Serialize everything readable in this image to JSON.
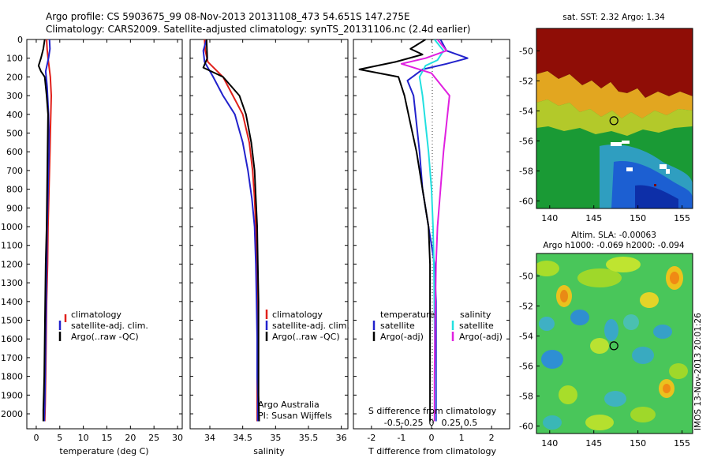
{
  "header": {
    "line1": "Argo profile: CS 5903675_99 08-Nov-2013 20131108_473 54.651S 147.275E",
    "line2": "Climatology: CARS2009. Satellite-adjusted climatology: synTS_20131106.nc (2.4d earlier)"
  },
  "colors": {
    "red": "#e0201b",
    "blue": "#2222cc",
    "black": "#000000",
    "cyan": "#22e0e0",
    "magenta": "#e020e0"
  },
  "chart_data": [
    {
      "id": "temperature",
      "type": "line",
      "xlabel": "temperature (deg C)",
      "ylabel": "",
      "xlim": [
        -2,
        31
      ],
      "ylim": [
        2080,
        0
      ],
      "y_reversed": true,
      "xticks": [
        "0",
        "5",
        "10",
        "15",
        "20",
        "25",
        "30"
      ],
      "xtick_values": [
        0,
        5,
        10,
        15,
        20,
        25,
        30
      ],
      "yticks": [
        "0",
        "100",
        "200",
        "300",
        "400",
        "500",
        "600",
        "700",
        "800",
        "900",
        "1000",
        "1100",
        "1200",
        "1300",
        "1400",
        "1500",
        "1600",
        "1700",
        "1800",
        "1900",
        "2000"
      ],
      "ytick_values": [
        0,
        100,
        200,
        300,
        400,
        500,
        600,
        700,
        800,
        900,
        1000,
        1100,
        1200,
        1300,
        1400,
        1500,
        1600,
        1700,
        1800,
        1900,
        2000
      ],
      "legend": [
        "climatology",
        "satellite-adj. clim.",
        "Argo(..raw -QC)"
      ],
      "series": [
        {
          "name": "climatology",
          "color": "red",
          "x": [
            2.2,
            2.3,
            2.5,
            3,
            3.2,
            3.1,
            3,
            2.9,
            2.8,
            2.7,
            2.6,
            2.5,
            2.4,
            2.2,
            2.1,
            2,
            1.9,
            1.8
          ],
          "y": [
            0,
            50,
            100,
            200,
            300,
            400,
            500,
            600,
            700,
            800,
            900,
            1000,
            1200,
            1400,
            1600,
            1800,
            1950,
            2040
          ]
        },
        {
          "name": "satellite-adj. clim.",
          "color": "blue",
          "x": [
            2.8,
            2.9,
            2.6,
            2,
            2.3,
            2.6,
            2.7,
            2.7,
            2.6,
            2.5,
            2.4,
            2.3,
            2.2,
            2.1,
            2,
            1.9,
            1.8,
            1.7
          ],
          "y": [
            0,
            50,
            100,
            170,
            250,
            400,
            500,
            600,
            700,
            800,
            900,
            1000,
            1200,
            1400,
            1600,
            1800,
            1950,
            2040
          ]
        },
        {
          "name": "Argo(..raw -QC)",
          "color": "black",
          "x": [
            1.8,
            1.5,
            1,
            0.5,
            1,
            1.8,
            2.2,
            2.5,
            2.4,
            2.3,
            2.2,
            2,
            1.9,
            1.8,
            1.7,
            1.6,
            1.5,
            1.5
          ],
          "y": [
            0,
            50,
            100,
            140,
            170,
            200,
            300,
            400,
            600,
            800,
            1000,
            1200,
            1400,
            1600,
            1800,
            1900,
            1980,
            2040
          ]
        }
      ]
    },
    {
      "id": "salinity",
      "type": "line",
      "xlabel": "salinity",
      "ylabel": "",
      "xlim": [
        33.7,
        36.1
      ],
      "ylim": [
        2080,
        0
      ],
      "y_reversed": true,
      "xticks": [
        "34",
        "34.5",
        "35",
        "35.5",
        "36"
      ],
      "xtick_values": [
        34,
        34.5,
        35,
        35.5,
        36
      ],
      "legend": [
        "climatology",
        "satellite-adj. clim.",
        "Argo(..raw -QC)"
      ],
      "annotation": [
        "Argo Australia",
        "PI: Susan Wijffels"
      ],
      "series": [
        {
          "name": "climatology",
          "color": "red",
          "x": [
            33.92,
            33.93,
            33.97,
            34.2,
            34.35,
            34.5,
            34.6,
            34.65,
            34.68,
            34.7,
            34.71,
            34.72,
            34.72,
            34.72,
            34.72,
            34.72,
            34.72
          ],
          "y": [
            0,
            60,
            120,
            200,
            300,
            400,
            550,
            700,
            850,
            1000,
            1200,
            1400,
            1600,
            1800,
            1900,
            2000,
            2040
          ]
        },
        {
          "name": "satellite-adj. clim.",
          "color": "blue",
          "x": [
            33.95,
            33.9,
            33.92,
            34.05,
            34.2,
            34.38,
            34.5,
            34.58,
            34.64,
            34.68,
            34.7,
            34.71,
            34.72,
            34.72,
            34.73,
            34.73,
            34.73
          ],
          "y": [
            0,
            60,
            120,
            200,
            300,
            400,
            550,
            700,
            850,
            1000,
            1200,
            1400,
            1600,
            1800,
            1900,
            2000,
            2040
          ]
        },
        {
          "name": "Argo(..raw -QC)",
          "color": "black",
          "x": [
            33.95,
            33.96,
            33.9,
            34.2,
            34.45,
            34.55,
            34.63,
            34.68,
            34.7,
            34.72,
            34.73,
            34.74,
            34.74,
            34.74,
            34.75
          ],
          "y": [
            0,
            100,
            150,
            200,
            300,
            400,
            550,
            700,
            850,
            1000,
            1200,
            1400,
            1600,
            1900,
            2040
          ]
        }
      ]
    },
    {
      "id": "difference",
      "type": "line",
      "xlabel": "T difference from climatology",
      "top_axis_label": "S difference from climatology",
      "xlim": [
        -2.6,
        2.6
      ],
      "ylim": [
        2080,
        0
      ],
      "y_reversed": true,
      "xticks": [
        "-2",
        "-1",
        "0",
        "1",
        "2"
      ],
      "xtick_values": [
        -2,
        -1,
        0,
        1,
        2
      ],
      "sticks": [
        "-0.5",
        "-0.25",
        "0",
        "0.25",
        "0.5"
      ],
      "stick_values": [
        -0.5,
        -0.25,
        0,
        0.25,
        0.5
      ],
      "s_scale": 2.6,
      "legend": {
        "temperature_heading": "temperature",
        "salinity_heading": "salinity",
        "items": [
          "satellite",
          "Argo(-adj)",
          "satellite",
          "Argo(-adj)"
        ]
      },
      "series": [
        {
          "name": "temperature satellite",
          "color": "blue",
          "x": [
            0.3,
            0.5,
            1.2,
            0.5,
            -0.3,
            -0.8,
            -0.6,
            -0.5,
            -0.4,
            -0.3,
            -0.1,
            0.1,
            0.15,
            0.15,
            0.15,
            0.15
          ],
          "y": [
            0,
            60,
            100,
            130,
            160,
            220,
            300,
            450,
            600,
            800,
            1000,
            1200,
            1400,
            1700,
            1900,
            2040
          ]
        },
        {
          "name": "temperature Argo(-adj)",
          "color": "black",
          "x": [
            -0.2,
            -0.7,
            -0.3,
            -1.2,
            -2.4,
            -1.1,
            -0.9,
            -0.7,
            -0.5,
            -0.3,
            -0.1,
            -0.05,
            -0.05,
            -0.05,
            -0.05
          ],
          "y": [
            0,
            50,
            80,
            120,
            160,
            200,
            300,
            450,
            600,
            800,
            1000,
            1200,
            1500,
            1800,
            2040
          ]
        },
        {
          "name": "salinity satellite",
          "color": "cyan",
          "x": [
            0.1,
            0.4,
            0.2,
            -0.2,
            -0.4,
            -0.3,
            -0.2,
            -0.1,
            0,
            0.05,
            0.08,
            0.1,
            0.12,
            0.12
          ],
          "y": [
            0,
            60,
            110,
            140,
            200,
            300,
            450,
            600,
            800,
            1000,
            1200,
            1500,
            1800,
            2040
          ]
        },
        {
          "name": "salinity Argo(-adj)",
          "color": "magenta",
          "x": [
            0.2,
            0.5,
            -0.2,
            -1,
            0,
            0.6,
            0.5,
            0.4,
            0.3,
            0.2,
            0.15,
            0.12,
            0.1,
            0.1
          ],
          "y": [
            0,
            60,
            100,
            130,
            180,
            300,
            450,
            600,
            800,
            1000,
            1200,
            1500,
            1800,
            2040
          ]
        }
      ]
    },
    {
      "id": "sst_map",
      "type": "heatmap",
      "title": "sat. SST: 2.32 Argo: 1.34",
      "xlim": [
        138.5,
        156.2
      ],
      "ylim": [
        -60.5,
        -48.5
      ],
      "xticks": [
        "140",
        "145",
        "150",
        "155"
      ],
      "xtick_values": [
        140,
        145,
        150,
        155
      ],
      "yticks": [
        "-50",
        "-52",
        "-54",
        "-56",
        "-58",
        "-60"
      ],
      "ytick_values": [
        -50,
        -52,
        -54,
        -56,
        -58,
        -60
      ],
      "marker": {
        "lon": 147.275,
        "lat": -54.651
      }
    },
    {
      "id": "sla_map",
      "type": "heatmap",
      "title": "Altim. SLA: -0.00063",
      "subtitle": "Argo h1000: -0.069 h2000: -0.094",
      "xlim": [
        138.5,
        156.2
      ],
      "ylim": [
        -60.5,
        -48.5
      ],
      "xticks": [
        "140",
        "145",
        "150",
        "155"
      ],
      "xtick_values": [
        140,
        145,
        150,
        155
      ],
      "yticks": [
        "-50",
        "-52",
        "-54",
        "-56",
        "-58",
        "-60"
      ],
      "ytick_values": [
        -50,
        -52,
        -54,
        -56,
        -58,
        -60
      ],
      "marker": {
        "lon": 147.275,
        "lat": -54.651
      },
      "side_label": "IMOS 13-Nov-2013 20:01:26"
    }
  ]
}
